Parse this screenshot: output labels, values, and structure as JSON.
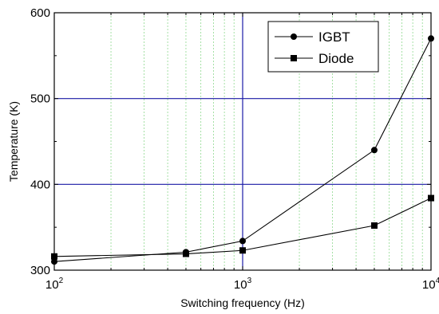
{
  "chart_data": {
    "type": "line",
    "title": "",
    "xlabel": "Switching frequency (Hz)",
    "ylabel": "Temperature (K)",
    "x_scale": "log",
    "xlim": [
      100,
      10000
    ],
    "ylim": [
      300,
      600
    ],
    "x_ticks": [
      {
        "value": 100,
        "base": "10",
        "exp": "2"
      },
      {
        "value": 1000,
        "base": "10",
        "exp": "3"
      },
      {
        "value": 10000,
        "base": "10",
        "exp": "4"
      }
    ],
    "y_ticks": [
      {
        "value": 300,
        "label": "300"
      },
      {
        "value": 400,
        "label": "400"
      },
      {
        "value": 500,
        "label": "500"
      },
      {
        "value": 600,
        "label": "600"
      }
    ],
    "grid": {
      "major": true,
      "minor_x": true,
      "major_color": "#1a1aa6",
      "minor_color": "#8fd98f"
    },
    "legend_position": "top-right",
    "series": [
      {
        "name": "IGBT",
        "marker": "circle",
        "color": "#000000",
        "x": [
          100,
          500,
          1000,
          5000,
          10000
        ],
        "y": [
          310,
          321,
          334,
          440,
          570
        ]
      },
      {
        "name": "Diode",
        "marker": "square",
        "color": "#000000",
        "x": [
          100,
          500,
          1000,
          5000,
          10000
        ],
        "y": [
          316,
          319,
          323,
          352,
          384
        ]
      }
    ]
  }
}
